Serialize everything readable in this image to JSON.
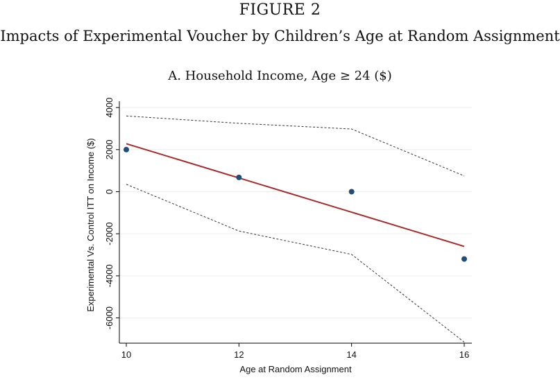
{
  "figure": {
    "label": "FIGURE 2",
    "title": "Impacts of Experimental Voucher by Children’s Age at Random Assignment",
    "panel_title": "A. Household Income, Age ≥ 24 ($)"
  },
  "colors": {
    "points": "#1f4e79",
    "fit_line": "#a52a2a",
    "ci_lines": "#333333",
    "grid": "#eeeeee",
    "axis": "#000000"
  },
  "chart_data": {
    "type": "scatter",
    "title": "A. Household Income, Age ≥ 24 ($)",
    "xlabel": "Age at Random Assignment",
    "ylabel": "Experimental Vs. Control ITT on Income ($)",
    "xlim": [
      10,
      16
    ],
    "ylim": [
      -7200,
      4300
    ],
    "xticks": [
      10,
      12,
      14,
      16
    ],
    "yticks": [
      -6000,
      -4000,
      -2000,
      0,
      2000,
      4000
    ],
    "grid": true,
    "series": [
      {
        "name": "ITT estimate",
        "kind": "points",
        "x": [
          10,
          12,
          14,
          16
        ],
        "y": [
          2000,
          680,
          0,
          -3200
        ]
      },
      {
        "name": "Linear fit",
        "kind": "line",
        "x": [
          10,
          16
        ],
        "y": [
          2280,
          -2600
        ]
      },
      {
        "name": "Upper 95% CI",
        "kind": "dashed",
        "x": [
          10,
          12,
          14,
          16
        ],
        "y": [
          3600,
          3250,
          2980,
          750
        ]
      },
      {
        "name": "Lower 95% CI",
        "kind": "dashed",
        "x": [
          10,
          12,
          14,
          16
        ],
        "y": [
          350,
          -1870,
          -2980,
          -7150
        ]
      }
    ]
  }
}
